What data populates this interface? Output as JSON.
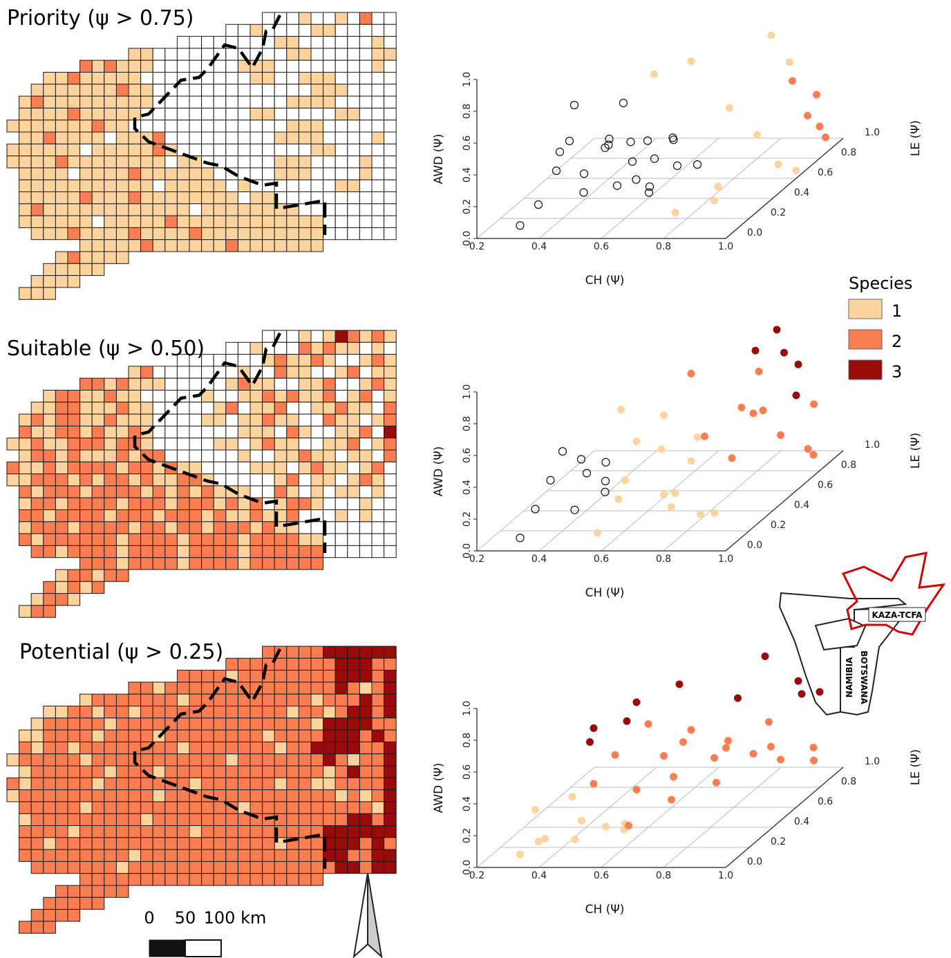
{
  "maps": [
    {
      "title": "Priority (ψ > 0.75)",
      "rows": [
        ".....................00010010200",
        "..................00100001100000",
        "..............000000001100000010",
        "..........1100000000000110000011",
        "......21211100000001110000000010",
        "...11211111000000000110011100000",
        "..111111121100000000000001110000",
        ".1211111111100000000000111100000",
        ".1111211111000000000110000011000",
        "11111112110000000000000111000000",
        ".1121111011120000000001111000010",
        "11111101111121000000000001100000",
        "11112111111110110000001110000100",
        ".1111011112111111000001110000100",
        ".1111111111101111101000000011000",
        ".1111121112111111110110000000000",
        ".1211111111111101111111100000000",
        ".1111110111112111111111111000000",
        "..111211112111121111111111000000",
        "......11111211111121111111",
        "....121111",
        "...11111",
        "..1111",
        ".111"
      ]
    },
    {
      "title": "Suitable (ψ > 0.50)",
      "rows": [
        ".....................00010132121",
        "..................00100021211010",
        "..............000000012112100121",
        "..........1200000001002110012011",
        "......22121110000012110011200121",
        "...12211211000001001121211201201",
        "..112211121100000120112001121102",
        ".1212211211100001101121100211012",
        ".2112212112100000001110210011203",
        "11211222122100000110121100112012",
        ".1221211121220000001001121101102",
        "21121222212212110000111012110120",
        "11222121221211221000001201101210",
        ".2122212222121212111002101011010",
        ".1221222212221222121201221000100",
        ".2212222122212221211211200010100",
        ".1222122221221221222121100000000",
        ".2122222212222122221222211000000",
        "..221222212222122221222222000000",
        "......22212222122221222222",
        "....122122",
        "...21212",
        "..1221",
        ".122"
      ]
    },
    {
      "title": "Potential (ψ > 0.25)",
      "rows": [
        ".....................22222333333",
        "..................22222222233322",
        "..............222212222222233323",
        "..........2212222222222222232123",
        "......12222222122222222221222323",
        "...11221221222222222222122123323",
        "..122222122222222222222221333322",
        ".1122221222212222222212222333232",
        ".2122122222222122222221223333223",
        "12222212222222222212222222321223",
        ".1222222122212222222222222123223",
        "21222221222222212222221221122223",
        "12222222222212222222222222212123",
        ".2222212222222222221222222222213",
        ".1222222222122222222222222223323",
        ".2222122222222212222222222333333",
        ".2212222222222222222221222333232",
        ".2222222221222222222222222332233",
        "..222222212222222222222222233233",
        "......22222222222222222222",
        "....222222",
        "...22222",
        "..2222",
        ".222"
      ]
    }
  ],
  "chart_data": [
    {
      "type": "scatter3d",
      "x_label": "CH (Ψ)",
      "y_label": "AWD (Ψ)",
      "z_label": "LE (Ψ)",
      "xlim": [
        0.2,
        1
      ],
      "ylim": [
        0,
        1
      ],
      "zlim": [
        0,
        1
      ],
      "xticks": [
        0.2,
        0.4,
        0.6,
        0.8,
        {
          "value": 1,
          "label": "1.0"
        }
      ],
      "yticks": [
        {
          "value": 0,
          "label": "0.0"
        },
        0.2,
        0.4,
        0.6,
        0.8,
        {
          "value": 1,
          "label": "1.0"
        }
      ],
      "zticks": [
        {
          "value": 0,
          "label": "0.0"
        },
        0.2,
        0.4,
        0.6,
        0.8,
        {
          "value": 1,
          "label": "1.0"
        }
      ],
      "points": {
        "x": [
          0.32,
          0.36,
          0.38,
          0.41,
          0.43,
          0.45,
          0.46,
          0.48,
          0.5,
          0.51,
          0.53,
          0.55,
          0.56,
          0.58,
          0.6,
          0.62,
          0.64,
          0.66,
          0.68,
          0.7,
          0.72,
          0.75,
          0.4,
          0.52,
          0.8,
          0.85,
          0.9,
          0.95,
          0.98,
          1.0,
          0.88,
          0.6,
          0.7,
          0.92,
          0.96,
          1.0,
          0.98,
          1.0,
          0.95,
          0.99
        ],
        "y": [
          0.05,
          0.15,
          0.3,
          0.45,
          0.1,
          0.25,
          0.55,
          0.35,
          0.08,
          0.4,
          0.2,
          0.5,
          0.3,
          0.15,
          0.45,
          0.25,
          0.1,
          0.35,
          0.2,
          0.4,
          0.15,
          0.3,
          0.65,
          0.6,
          0.1,
          0.05,
          0.2,
          0.4,
          0.15,
          0.05,
          0.6,
          0.75,
          0.8,
          0.9,
          0.7,
          0.2,
          0.3,
          0.1,
          0.55,
          0.4
        ],
        "z": [
          0.05,
          0.1,
          0.2,
          0.15,
          0.3,
          0.25,
          0.1,
          0.35,
          0.4,
          0.3,
          0.45,
          0.2,
          0.5,
          0.35,
          0.25,
          0.4,
          0.3,
          0.45,
          0.2,
          0.35,
          0.5,
          0.25,
          0.3,
          0.4,
          0.1,
          0.3,
          0.2,
          0.4,
          0.5,
          0.6,
          0.35,
          0.45,
          0.5,
          0.6,
          0.65,
          0.8,
          0.75,
          0.85,
          0.7,
          0.8
        ],
        "species": [
          0,
          0,
          0,
          0,
          0,
          0,
          0,
          0,
          0,
          0,
          0,
          0,
          0,
          0,
          0,
          0,
          0,
          0,
          0,
          0,
          0,
          0,
          0,
          0,
          1,
          1,
          1,
          1,
          1,
          1,
          1,
          1,
          1,
          1,
          1,
          2,
          2,
          2,
          2,
          2
        ]
      }
    },
    {
      "type": "scatter3d",
      "x_label": "CH (Ψ)",
      "y_label": "AWD (Ψ)",
      "z_label": "LE (Ψ)",
      "xlim": [
        0.2,
        1
      ],
      "ylim": [
        0,
        1
      ],
      "zlim": [
        0,
        1
      ],
      "xticks": [
        0.2,
        0.4,
        0.6,
        0.8,
        {
          "value": 1,
          "label": "1.0"
        }
      ],
      "yticks": [
        {
          "value": 0,
          "label": "0.0"
        },
        0.2,
        0.4,
        0.6,
        0.8,
        {
          "value": 1,
          "label": "1.0"
        }
      ],
      "zticks": [
        {
          "value": 0,
          "label": "0.0"
        },
        0.2,
        0.4,
        0.6,
        0.8,
        {
          "value": 1,
          "label": "1.0"
        }
      ],
      "points": {
        "x": [
          0.32,
          0.35,
          0.38,
          0.4,
          0.42,
          0.44,
          0.46,
          0.48,
          0.5,
          0.52,
          0.55,
          0.58,
          0.6,
          0.62,
          0.65,
          0.68,
          0.7,
          0.75,
          0.8,
          0.85,
          0.9,
          0.55,
          0.65,
          0.72,
          0.8,
          0.85,
          0.9,
          0.95,
          1.0,
          0.98,
          1.0,
          0.9,
          0.7,
          0.95,
          0.88,
          0.9,
          0.95,
          0.85,
          1.0,
          0.98
        ],
        "y": [
          0.05,
          0.2,
          0.35,
          0.5,
          0.1,
          0.3,
          0.45,
          0.15,
          0.25,
          0.4,
          0.05,
          0.2,
          0.5,
          0.35,
          0.1,
          0.45,
          0.25,
          0.15,
          0.3,
          0.05,
          0.2,
          0.7,
          0.6,
          0.4,
          0.5,
          0.3,
          0.55,
          0.35,
          0.2,
          0.1,
          0.45,
          0.65,
          0.8,
          0.6,
          0.75,
          0.95,
          0.7,
          0.85,
          0.6,
          0.9
        ],
        "z": [
          0.05,
          0.1,
          0.15,
          0.2,
          0.25,
          0.3,
          0.2,
          0.35,
          0.3,
          0.25,
          0.1,
          0.2,
          0.3,
          0.15,
          0.4,
          0.3,
          0.5,
          0.2,
          0.1,
          0.3,
          0.05,
          0.3,
          0.4,
          0.5,
          0.35,
          0.45,
          0.5,
          0.6,
          0.7,
          0.8,
          0.75,
          0.4,
          0.5,
          0.45,
          0.6,
          0.7,
          0.75,
          0.65,
          0.6,
          0.55
        ],
        "species": [
          0,
          0,
          0,
          0,
          0,
          0,
          0,
          0,
          0,
          0,
          1,
          1,
          1,
          1,
          1,
          1,
          1,
          1,
          1,
          1,
          1,
          1,
          1,
          1,
          2,
          2,
          2,
          2,
          2,
          2,
          2,
          2,
          2,
          2,
          2,
          3,
          3,
          3,
          3,
          3
        ]
      }
    },
    {
      "type": "scatter3d",
      "x_label": "CH (Ψ)",
      "y_label": "AWD (Ψ)",
      "z_label": "LE (Ψ)",
      "xlim": [
        0.2,
        1
      ],
      "ylim": [
        0,
        1
      ],
      "zlim": [
        0,
        1
      ],
      "xticks": [
        0.2,
        0.4,
        0.6,
        0.8,
        {
          "value": 1,
          "label": "1.0"
        }
      ],
      "yticks": [
        {
          "value": 0,
          "label": "0.0"
        },
        0.2,
        0.4,
        0.6,
        0.8,
        {
          "value": 1,
          "label": "1.0"
        }
      ],
      "zticks": [
        {
          "value": 0,
          "label": "0.0"
        },
        0.2,
        0.4,
        0.6,
        0.8,
        {
          "value": 1,
          "label": "1.0"
        }
      ],
      "points": {
        "x": [
          0.32,
          0.36,
          0.4,
          0.44,
          0.48,
          0.52,
          0.56,
          0.6,
          0.35,
          0.45,
          0.5,
          0.55,
          0.6,
          0.65,
          0.7,
          0.75,
          0.8,
          0.85,
          0.9,
          0.95,
          1.0,
          0.6,
          0.7,
          0.8,
          0.9,
          0.98,
          0.65,
          0.75,
          0.85,
          0.95,
          0.45,
          0.5,
          0.55,
          0.6,
          0.7,
          0.85,
          0.9,
          0.95,
          1.0,
          0.98
        ],
        "y": [
          0.05,
          0.1,
          0.15,
          0.05,
          0.2,
          0.1,
          0.05,
          0.15,
          0.3,
          0.35,
          0.4,
          0.55,
          0.3,
          0.45,
          0.35,
          0.6,
          0.25,
          0.5,
          0.4,
          0.3,
          0.2,
          0.65,
          0.55,
          0.45,
          0.35,
          0.25,
          0.2,
          0.3,
          0.5,
          0.6,
          0.6,
          0.75,
          0.7,
          0.85,
          0.9,
          0.75,
          0.95,
          0.7,
          0.6,
          0.65
        ],
        "z": [
          0.05,
          0.1,
          0.05,
          0.2,
          0.15,
          0.25,
          0.3,
          0.2,
          0.1,
          0.15,
          0.2,
          0.25,
          0.3,
          0.4,
          0.35,
          0.3,
          0.45,
          0.4,
          0.5,
          0.6,
          0.75,
          0.4,
          0.5,
          0.55,
          0.65,
          0.8,
          0.1,
          0.2,
          0.3,
          0.5,
          0.3,
          0.2,
          0.35,
          0.3,
          0.4,
          0.5,
          0.6,
          0.75,
          0.8,
          0.7
        ],
        "species": [
          1,
          1,
          1,
          1,
          1,
          1,
          1,
          1,
          1,
          1,
          2,
          2,
          2,
          2,
          2,
          2,
          2,
          2,
          2,
          2,
          2,
          2,
          2,
          2,
          2,
          2,
          2,
          2,
          2,
          2,
          3,
          3,
          3,
          3,
          3,
          3,
          3,
          3,
          3,
          3
        ]
      }
    }
  ],
  "legend": {
    "title": "Species",
    "items": [
      {
        "label": "1",
        "color": "#fdd49e"
      },
      {
        "label": "2",
        "color": "#fb7d52"
      },
      {
        "label": "3",
        "color": "#990b0b"
      }
    ]
  },
  "scale_bar": {
    "labels": [
      "0",
      "50",
      "100 km"
    ]
  },
  "inset": {
    "labels": [
      "KAZA-TCFA",
      "NAMIBIA",
      "BOTSWANA"
    ]
  }
}
